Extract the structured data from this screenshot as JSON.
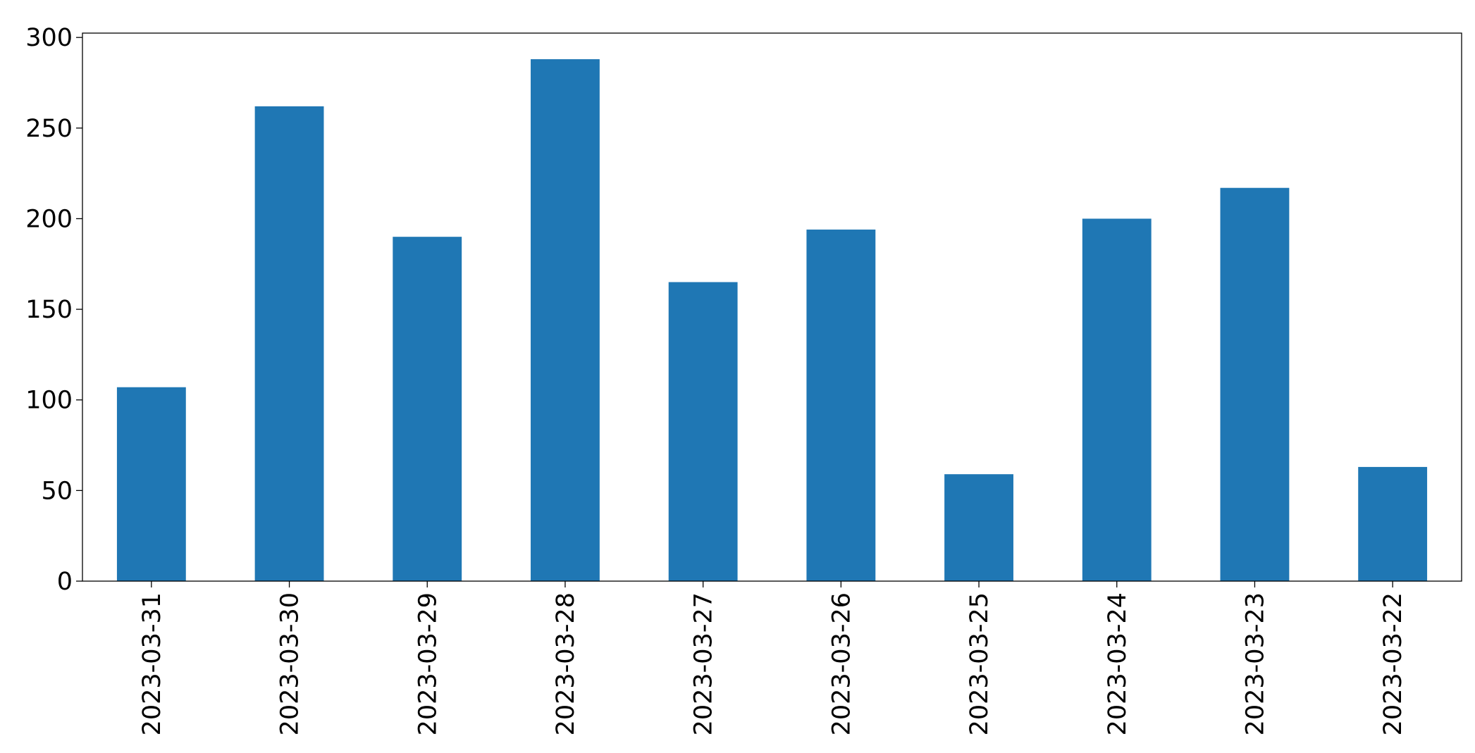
{
  "chart_data": {
    "type": "bar",
    "categories": [
      "2023-03-31",
      "2023-03-30",
      "2023-03-29",
      "2023-03-28",
      "2023-03-27",
      "2023-03-26",
      "2023-03-25",
      "2023-03-24",
      "2023-03-23",
      "2023-03-22"
    ],
    "values": [
      107,
      262,
      190,
      288,
      165,
      194,
      59,
      200,
      217,
      63
    ],
    "color": "#1f77b4",
    "ylim": [
      0,
      302.4
    ],
    "yticks": [
      0,
      50,
      100,
      150,
      200,
      250,
      300
    ],
    "grid": false
  }
}
